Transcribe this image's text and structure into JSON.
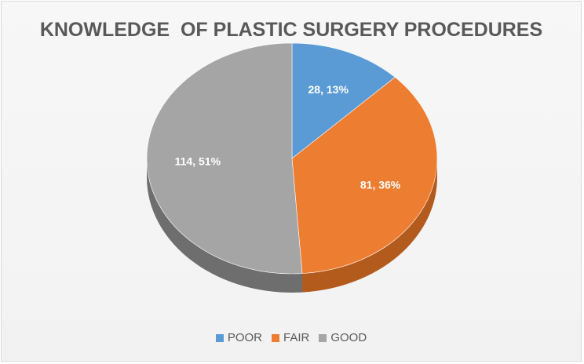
{
  "chart_data": {
    "type": "pie",
    "title": "KNOWLEDGE  OF PLASTIC SURGERY PROCEDURES",
    "categories": [
      "POOR",
      "FAIR",
      "GOOD"
    ],
    "values": [
      28,
      81,
      114
    ],
    "percent_labels": [
      "28, 13%",
      "81, 36%",
      "114, 51%"
    ],
    "colors": [
      "#5b9bd5",
      "#ed7d31",
      "#a5a5a5"
    ],
    "side_colors": [
      "#3f77aa",
      "#b35a1d",
      "#6e6e6e"
    ],
    "legend": "bottom",
    "style": "3d"
  }
}
